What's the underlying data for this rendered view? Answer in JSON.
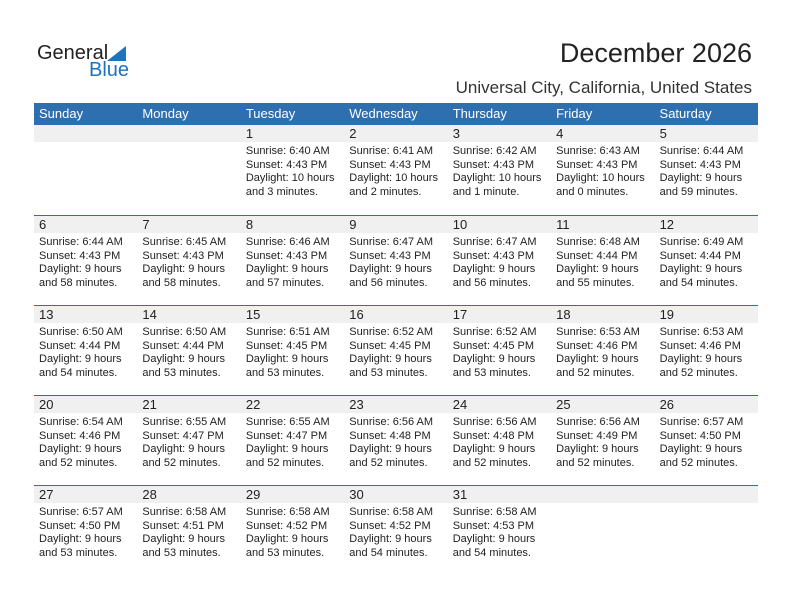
{
  "logo": {
    "text1": "General",
    "text2": "Blue"
  },
  "title": "December 2026",
  "location": "Universal City, California, United States",
  "colors": {
    "header": "#2e6fb0",
    "band": "#f0f0f0",
    "logo_blue": "#1e73be"
  },
  "weekdays": [
    "Sunday",
    "Monday",
    "Tuesday",
    "Wednesday",
    "Thursday",
    "Friday",
    "Saturday"
  ],
  "first_weekday_offset": 2,
  "days": [
    {
      "date": "1",
      "sunrise": "Sunrise: 6:40 AM",
      "sunset": "Sunset: 4:43 PM",
      "daylight": "Daylight: 10 hours",
      "daylight2": "and 3 minutes."
    },
    {
      "date": "2",
      "sunrise": "Sunrise: 6:41 AM",
      "sunset": "Sunset: 4:43 PM",
      "daylight": "Daylight: 10 hours",
      "daylight2": "and 2 minutes."
    },
    {
      "date": "3",
      "sunrise": "Sunrise: 6:42 AM",
      "sunset": "Sunset: 4:43 PM",
      "daylight": "Daylight: 10 hours",
      "daylight2": "and 1 minute."
    },
    {
      "date": "4",
      "sunrise": "Sunrise: 6:43 AM",
      "sunset": "Sunset: 4:43 PM",
      "daylight": "Daylight: 10 hours",
      "daylight2": "and 0 minutes."
    },
    {
      "date": "5",
      "sunrise": "Sunrise: 6:44 AM",
      "sunset": "Sunset: 4:43 PM",
      "daylight": "Daylight: 9 hours",
      "daylight2": "and 59 minutes."
    },
    {
      "date": "6",
      "sunrise": "Sunrise: 6:44 AM",
      "sunset": "Sunset: 4:43 PM",
      "daylight": "Daylight: 9 hours",
      "daylight2": "and 58 minutes."
    },
    {
      "date": "7",
      "sunrise": "Sunrise: 6:45 AM",
      "sunset": "Sunset: 4:43 PM",
      "daylight": "Daylight: 9 hours",
      "daylight2": "and 58 minutes."
    },
    {
      "date": "8",
      "sunrise": "Sunrise: 6:46 AM",
      "sunset": "Sunset: 4:43 PM",
      "daylight": "Daylight: 9 hours",
      "daylight2": "and 57 minutes."
    },
    {
      "date": "9",
      "sunrise": "Sunrise: 6:47 AM",
      "sunset": "Sunset: 4:43 PM",
      "daylight": "Daylight: 9 hours",
      "daylight2": "and 56 minutes."
    },
    {
      "date": "10",
      "sunrise": "Sunrise: 6:47 AM",
      "sunset": "Sunset: 4:43 PM",
      "daylight": "Daylight: 9 hours",
      "daylight2": "and 56 minutes."
    },
    {
      "date": "11",
      "sunrise": "Sunrise: 6:48 AM",
      "sunset": "Sunset: 4:44 PM",
      "daylight": "Daylight: 9 hours",
      "daylight2": "and 55 minutes."
    },
    {
      "date": "12",
      "sunrise": "Sunrise: 6:49 AM",
      "sunset": "Sunset: 4:44 PM",
      "daylight": "Daylight: 9 hours",
      "daylight2": "and 54 minutes."
    },
    {
      "date": "13",
      "sunrise": "Sunrise: 6:50 AM",
      "sunset": "Sunset: 4:44 PM",
      "daylight": "Daylight: 9 hours",
      "daylight2": "and 54 minutes."
    },
    {
      "date": "14",
      "sunrise": "Sunrise: 6:50 AM",
      "sunset": "Sunset: 4:44 PM",
      "daylight": "Daylight: 9 hours",
      "daylight2": "and 53 minutes."
    },
    {
      "date": "15",
      "sunrise": "Sunrise: 6:51 AM",
      "sunset": "Sunset: 4:45 PM",
      "daylight": "Daylight: 9 hours",
      "daylight2": "and 53 minutes."
    },
    {
      "date": "16",
      "sunrise": "Sunrise: 6:52 AM",
      "sunset": "Sunset: 4:45 PM",
      "daylight": "Daylight: 9 hours",
      "daylight2": "and 53 minutes."
    },
    {
      "date": "17",
      "sunrise": "Sunrise: 6:52 AM",
      "sunset": "Sunset: 4:45 PM",
      "daylight": "Daylight: 9 hours",
      "daylight2": "and 53 minutes."
    },
    {
      "date": "18",
      "sunrise": "Sunrise: 6:53 AM",
      "sunset": "Sunset: 4:46 PM",
      "daylight": "Daylight: 9 hours",
      "daylight2": "and 52 minutes."
    },
    {
      "date": "19",
      "sunrise": "Sunrise: 6:53 AM",
      "sunset": "Sunset: 4:46 PM",
      "daylight": "Daylight: 9 hours",
      "daylight2": "and 52 minutes."
    },
    {
      "date": "20",
      "sunrise": "Sunrise: 6:54 AM",
      "sunset": "Sunset: 4:46 PM",
      "daylight": "Daylight: 9 hours",
      "daylight2": "and 52 minutes."
    },
    {
      "date": "21",
      "sunrise": "Sunrise: 6:55 AM",
      "sunset": "Sunset: 4:47 PM",
      "daylight": "Daylight: 9 hours",
      "daylight2": "and 52 minutes."
    },
    {
      "date": "22",
      "sunrise": "Sunrise: 6:55 AM",
      "sunset": "Sunset: 4:47 PM",
      "daylight": "Daylight: 9 hours",
      "daylight2": "and 52 minutes."
    },
    {
      "date": "23",
      "sunrise": "Sunrise: 6:56 AM",
      "sunset": "Sunset: 4:48 PM",
      "daylight": "Daylight: 9 hours",
      "daylight2": "and 52 minutes."
    },
    {
      "date": "24",
      "sunrise": "Sunrise: 6:56 AM",
      "sunset": "Sunset: 4:48 PM",
      "daylight": "Daylight: 9 hours",
      "daylight2": "and 52 minutes."
    },
    {
      "date": "25",
      "sunrise": "Sunrise: 6:56 AM",
      "sunset": "Sunset: 4:49 PM",
      "daylight": "Daylight: 9 hours",
      "daylight2": "and 52 minutes."
    },
    {
      "date": "26",
      "sunrise": "Sunrise: 6:57 AM",
      "sunset": "Sunset: 4:50 PM",
      "daylight": "Daylight: 9 hours",
      "daylight2": "and 52 minutes."
    },
    {
      "date": "27",
      "sunrise": "Sunrise: 6:57 AM",
      "sunset": "Sunset: 4:50 PM",
      "daylight": "Daylight: 9 hours",
      "daylight2": "and 53 minutes."
    },
    {
      "date": "28",
      "sunrise": "Sunrise: 6:58 AM",
      "sunset": "Sunset: 4:51 PM",
      "daylight": "Daylight: 9 hours",
      "daylight2": "and 53 minutes."
    },
    {
      "date": "29",
      "sunrise": "Sunrise: 6:58 AM",
      "sunset": "Sunset: 4:52 PM",
      "daylight": "Daylight: 9 hours",
      "daylight2": "and 53 minutes."
    },
    {
      "date": "30",
      "sunrise": "Sunrise: 6:58 AM",
      "sunset": "Sunset: 4:52 PM",
      "daylight": "Daylight: 9 hours",
      "daylight2": "and 54 minutes."
    },
    {
      "date": "31",
      "sunrise": "Sunrise: 6:58 AM",
      "sunset": "Sunset: 4:53 PM",
      "daylight": "Daylight: 9 hours",
      "daylight2": "and 54 minutes."
    }
  ]
}
